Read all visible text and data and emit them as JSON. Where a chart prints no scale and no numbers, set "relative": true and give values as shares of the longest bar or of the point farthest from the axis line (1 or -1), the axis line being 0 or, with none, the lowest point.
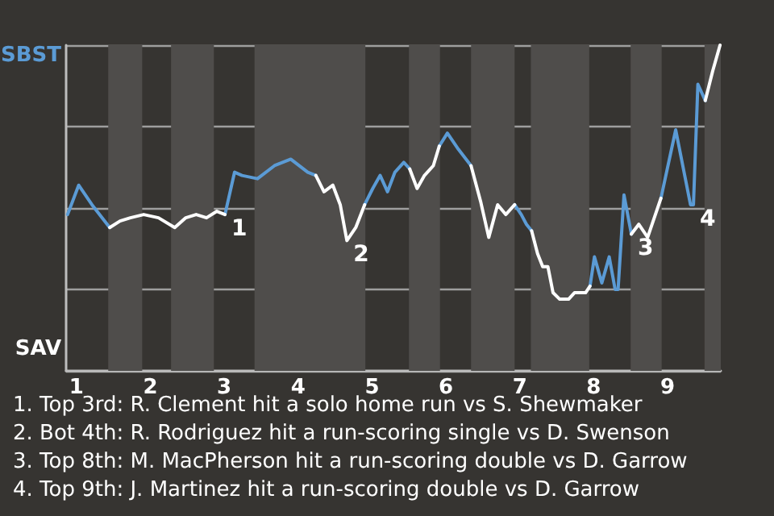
{
  "chart_data": {
    "type": "line",
    "relative": true,
    "x": [
      0.88,
      1.03,
      1.21,
      1.45,
      1.59,
      1.73,
      1.91,
      2.11,
      2.33,
      2.48,
      2.62,
      2.76,
      2.9,
      3.01,
      3.14,
      3.24,
      3.45,
      3.68,
      3.9,
      4.13,
      4.24,
      4.35,
      4.47,
      4.57,
      4.66,
      4.78,
      4.9,
      5.01,
      5.11,
      5.21,
      5.31,
      5.43,
      5.51,
      5.61,
      5.71,
      5.83,
      5.91,
      6.02,
      6.17,
      6.34,
      6.47,
      6.58,
      6.7,
      6.81,
      6.93,
      7.02,
      7.09,
      7.16,
      7.24,
      7.31,
      7.38,
      7.45,
      7.54,
      7.66,
      7.74,
      7.89,
      7.95,
      8.01,
      8.11,
      8.21,
      8.29,
      8.33,
      8.41,
      8.51,
      8.61,
      8.73,
      8.91,
      9.11,
      9.31,
      9.35,
      9.41,
      9.51,
      9.61,
      9.71
    ],
    "series": [
      {
        "color": "#5b9bd5",
        "values": [
          0.48,
          0.57,
          0.51,
          0.44,
          null,
          null,
          null,
          null,
          null,
          null,
          null,
          null,
          null,
          0.48,
          0.61,
          0.6,
          0.59,
          0.63,
          0.65,
          0.61,
          0.6,
          null,
          null,
          null,
          null,
          null,
          0.51,
          0.56,
          0.6,
          0.55,
          0.61,
          0.64,
          0.62,
          null,
          null,
          null,
          0.69,
          0.73,
          0.68,
          0.63,
          null,
          null,
          null,
          null,
          0.51,
          0.48,
          0.45,
          0.43,
          null,
          null,
          null,
          null,
          null,
          null,
          null,
          null,
          0.26,
          0.35,
          0.27,
          0.35,
          0.25,
          0.25,
          0.54,
          0.42,
          null,
          null,
          0.53,
          0.74,
          0.51,
          0.51,
          0.88,
          0.83,
          null,
          null
        ]
      },
      {
        "color": "#ffffff",
        "values": [
          null,
          null,
          null,
          0.44,
          0.46,
          0.47,
          0.48,
          0.47,
          0.44,
          0.47,
          0.48,
          0.47,
          0.49,
          0.48,
          null,
          null,
          null,
          null,
          null,
          null,
          0.6,
          0.55,
          0.57,
          0.51,
          0.4,
          0.44,
          0.51,
          null,
          null,
          null,
          null,
          null,
          0.62,
          0.56,
          0.6,
          0.63,
          0.69,
          null,
          null,
          0.63,
          0.52,
          0.41,
          0.51,
          0.48,
          0.51,
          null,
          null,
          0.43,
          0.36,
          0.32,
          0.32,
          0.24,
          0.22,
          0.22,
          0.24,
          0.24,
          0.26,
          null,
          null,
          null,
          null,
          null,
          null,
          0.42,
          0.45,
          0.41,
          0.53,
          null,
          null,
          null,
          null,
          0.83,
          0.92,
          1
        ]
      }
    ],
    "xlim": [
      0.86,
      9.72
    ],
    "xticks": [
      1,
      2,
      3,
      4,
      5,
      6,
      7,
      8,
      9
    ],
    "grid": "y",
    "marker": "none",
    "bands": [
      {
        "axis": "x",
        "from": 1.43,
        "to": 1.89,
        "color": "#4f4d4b"
      },
      {
        "axis": "x",
        "from": 2.28,
        "to": 2.86,
        "color": "#4f4d4b"
      },
      {
        "axis": "x",
        "from": 3.41,
        "to": 4.91,
        "color": "#4f4d4b"
      },
      {
        "axis": "x",
        "from": 5.5,
        "to": 5.92,
        "color": "#4f4d4b"
      },
      {
        "axis": "x",
        "from": 6.34,
        "to": 6.93,
        "color": "#4f4d4b"
      },
      {
        "axis": "x",
        "from": 7.15,
        "to": 7.94,
        "color": "#4f4d4b"
      },
      {
        "axis": "x",
        "from": 8.5,
        "to": 8.92,
        "color": "#4f4d4b"
      },
      {
        "axis": "x",
        "from": 9.5,
        "to": 9.72,
        "color": "#4f4d4b"
      }
    ],
    "annotations": [
      {
        "text": "1",
        "x": 3.01,
        "y": 0.48
      },
      {
        "text": "2",
        "x": 4.66,
        "y": 0.4
      },
      {
        "text": "3",
        "x": 8.51,
        "y": 0.42
      },
      {
        "text": "4",
        "x": 9.35,
        "y": 0.51
      },
      "SBST",
      "SAV",
      "1. Top 3rd: R. Clement hit a solo home run vs S. Shewmaker",
      "2. Bot 4th: R. Rodriguez hit a run-scoring single vs D. Swenson",
      "3. Top 8th: M. MacPherson hit a run-scoring double vs D. Garrow",
      "4. Top 9th: J. Martinez hit a run-scoring double vs D. Garrow"
    ]
  }
}
